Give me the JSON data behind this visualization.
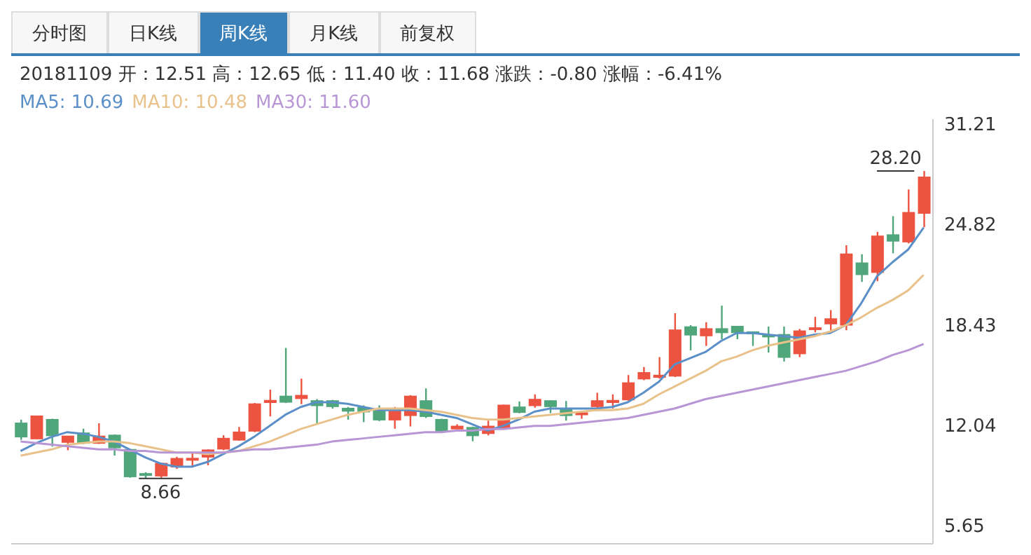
{
  "chart_data": {
    "type": "candlestick",
    "annotations": [
      "分时图",
      "日K线",
      "周K线",
      "月K线",
      "前复权",
      "20181109 开：12.51 高：12.65 低：11.40 收：11.68 涨跌：-0.80 涨幅：-6.41%",
      "8.66",
      "28.20"
    ],
    "categories": [
      null,
      null,
      null,
      null,
      null,
      null,
      null,
      null,
      null,
      null,
      null,
      null,
      null,
      null,
      null,
      null,
      null,
      null,
      null,
      null,
      null,
      null,
      null,
      null,
      null,
      null,
      null,
      null,
      null,
      null,
      null,
      null,
      null,
      null,
      null,
      null,
      null,
      null,
      null,
      null,
      null,
      null,
      null,
      null,
      null,
      null,
      null,
      null,
      null,
      null,
      null,
      null,
      null,
      null,
      null,
      null,
      null,
      null,
      null
    ],
    "ohlc": [
      [
        12.16,
        12.39,
        11.11,
        11.31
      ],
      [
        11.19,
        12.65,
        11.15,
        12.61
      ],
      [
        12.39,
        12.45,
        10.68,
        11.39
      ],
      [
        10.97,
        11.35,
        10.45,
        11.33
      ],
      [
        11.53,
        11.82,
        10.85,
        10.91
      ],
      [
        10.91,
        12.16,
        10.85,
        11.33
      ],
      [
        11.39,
        11.45,
        10.11,
        10.62
      ],
      [
        10.48,
        10.5,
        8.7,
        8.78
      ],
      [
        8.95,
        9.05,
        8.66,
        8.9
      ],
      [
        8.83,
        9.65,
        8.7,
        9.6
      ],
      [
        9.4,
        10.03,
        9.26,
        9.91
      ],
      [
        9.88,
        10.3,
        9.45,
        9.92
      ],
      [
        10.03,
        10.5,
        9.49,
        10.45
      ],
      [
        10.54,
        11.4,
        10.45,
        11.19
      ],
      [
        11.11,
        11.93,
        11.05,
        11.59
      ],
      [
        11.68,
        13.45,
        11.6,
        13.38
      ],
      [
        13.5,
        14.3,
        12.6,
        13.6
      ],
      [
        13.87,
        16.95,
        13.45,
        13.52
      ],
      [
        13.75,
        15.0,
        13.38,
        13.92
      ],
      [
        13.58,
        13.7,
        12.16,
        13.3
      ],
      [
        13.58,
        13.65,
        13.1,
        13.24
      ],
      [
        13.1,
        13.2,
        12.39,
        12.95
      ],
      [
        13.15,
        13.3,
        12.24,
        12.9
      ],
      [
        13.01,
        13.3,
        12.3,
        12.39
      ],
      [
        12.39,
        13.2,
        11.82,
        13.1
      ],
      [
        12.67,
        13.95,
        11.96,
        13.87
      ],
      [
        13.58,
        14.38,
        12.5,
        12.61
      ],
      [
        12.39,
        12.45,
        11.62,
        11.68
      ],
      [
        11.82,
        12.1,
        11.8,
        11.96
      ],
      [
        11.88,
        11.95,
        11.02,
        11.39
      ],
      [
        11.53,
        12.33,
        11.39,
        11.96
      ],
      [
        11.88,
        13.35,
        11.82,
        13.3
      ],
      [
        13.18,
        13.55,
        12.8,
        12.87
      ],
      [
        13.3,
        14.0,
        13.15,
        13.67
      ],
      [
        13.58,
        13.62,
        12.81,
        13.24
      ],
      [
        13.1,
        13.58,
        12.33,
        12.67
      ],
      [
        12.72,
        12.95,
        12.45,
        12.81
      ],
      [
        13.24,
        14.1,
        12.95,
        13.58
      ],
      [
        13.5,
        14.0,
        13.1,
        13.6
      ],
      [
        13.67,
        15.23,
        13.6,
        14.72
      ],
      [
        15.0,
        15.74,
        14.9,
        15.37
      ],
      [
        15.1,
        16.37,
        15.0,
        15.2
      ],
      [
        15.18,
        19.16,
        15.1,
        18.08
      ],
      [
        18.28,
        18.4,
        16.8,
        17.79
      ],
      [
        17.74,
        18.59,
        17.08,
        18.16
      ],
      [
        18.16,
        19.64,
        17.5,
        17.94
      ],
      [
        18.31,
        18.35,
        17.51,
        17.94
      ],
      [
        17.96,
        18.0,
        17.08,
        17.9
      ],
      [
        17.76,
        18.31,
        16.66,
        17.7
      ],
      [
        17.79,
        18.31,
        16.09,
        16.37
      ],
      [
        16.6,
        18.16,
        16.37,
        18.02
      ],
      [
        18.15,
        18.93,
        17.94,
        18.22
      ],
      [
        18.5,
        19.36,
        18.08,
        18.79
      ],
      [
        18.42,
        23.48,
        18.08,
        22.91
      ],
      [
        22.34,
        22.91,
        21.15,
        21.63
      ],
      [
        21.77,
        24.33,
        21.2,
        24.05
      ],
      [
        24.13,
        25.33,
        22.97,
        23.76
      ],
      [
        23.71,
        27.03,
        23.6,
        25.55
      ],
      [
        25.53,
        28.2,
        24.62,
        27.8
      ]
    ],
    "colors": [
      "#4fa67a",
      "#ec5340",
      "#4fa67a",
      "#ec5340",
      "#4fa67a",
      "#ec5340",
      "#4fa67a",
      "#4fa67a",
      "#4fa67a",
      "#ec5340",
      "#ec5340",
      "#ec5340",
      "#ec5340",
      "#ec5340",
      "#ec5340",
      "#ec5340",
      "#ec5340",
      "#4fa67a",
      "#ec5340",
      "#4fa67a",
      "#4fa67a",
      "#4fa67a",
      "#4fa67a",
      "#4fa67a",
      "#ec5340",
      "#ec5340",
      "#4fa67a",
      "#4fa67a",
      "#ec5340",
      "#4fa67a",
      "#ec5340",
      "#ec5340",
      "#4fa67a",
      "#ec5340",
      "#4fa67a",
      "#4fa67a",
      "#ec5340",
      "#ec5340",
      "#ec5340",
      "#ec5340",
      "#ec5340",
      "#ec5340",
      "#ec5340",
      "#4fa67a",
      "#ec5340",
      "#4fa67a",
      "#4fa67a",
      "#4fa67a",
      "#4fa67a",
      "#4fa67a",
      "#ec5340",
      "#ec5340",
      "#ec5340",
      "#ec5340",
      "#4fa67a",
      "#ec5340",
      "#4fa67a",
      "#ec5340",
      "#ec5340"
    ],
    "series": [
      {
        "type": "line",
        "name": "MA5: 10.69",
        "color": "#5b8fc7",
        "values": [
          10.4,
          10.9,
          11.3,
          11.6,
          11.5,
          11.3,
          11.0,
          10.5,
          10.0,
          9.6,
          9.4,
          9.4,
          9.7,
          10.2,
          10.7,
          11.3,
          12.0,
          12.7,
          13.2,
          13.5,
          13.5,
          13.4,
          13.2,
          13.0,
          13.0,
          13.0,
          12.9,
          12.7,
          12.5,
          12.1,
          11.7,
          12.0,
          12.4,
          12.9,
          13.1,
          13.1,
          13.1,
          13.1,
          13.2,
          13.5,
          14.1,
          14.8,
          15.9,
          16.3,
          16.7,
          17.4,
          17.9,
          17.9,
          17.8,
          17.7,
          17.6,
          17.8,
          17.9,
          18.4,
          19.8,
          21.5,
          22.4,
          23.2,
          24.6
        ]
      },
      {
        "type": "line",
        "name": "MA10: 10.48",
        "color": "#e8c28a",
        "values": [
          10.1,
          10.3,
          10.5,
          10.8,
          10.9,
          11.0,
          11.0,
          10.9,
          10.7,
          10.5,
          10.3,
          10.3,
          10.2,
          10.3,
          10.4,
          10.7,
          11.0,
          11.4,
          11.8,
          12.1,
          12.4,
          12.7,
          12.9,
          13.1,
          13.1,
          13.1,
          13.0,
          12.9,
          12.7,
          12.5,
          12.4,
          12.4,
          12.5,
          12.6,
          12.7,
          12.8,
          12.9,
          13.0,
          13.0,
          13.1,
          13.4,
          14.0,
          14.5,
          15.0,
          15.5,
          16.1,
          16.4,
          16.8,
          17.1,
          17.3,
          17.5,
          17.7,
          18.0,
          18.4,
          18.9,
          19.5,
          20.0,
          20.6,
          21.6
        ]
      },
      {
        "type": "line",
        "name": "MA30: 11.60",
        "color": "#b896d6",
        "values": [
          11.0,
          10.9,
          10.8,
          10.7,
          10.6,
          10.5,
          10.5,
          10.4,
          10.4,
          10.3,
          10.3,
          10.3,
          10.3,
          10.3,
          10.4,
          10.5,
          10.5,
          10.6,
          10.7,
          10.8,
          11.0,
          11.1,
          11.2,
          11.3,
          11.4,
          11.5,
          11.6,
          11.6,
          11.7,
          11.7,
          11.8,
          11.8,
          11.9,
          12.0,
          12.0,
          12.1,
          12.2,
          12.3,
          12.4,
          12.5,
          12.7,
          12.9,
          13.1,
          13.4,
          13.7,
          13.9,
          14.1,
          14.3,
          14.5,
          14.7,
          14.9,
          15.1,
          15.3,
          15.5,
          15.8,
          16.1,
          16.5,
          16.8,
          17.2
        ]
      }
    ],
    "ylim": [
      4.5,
      31.5
    ],
    "yticks": [
      5.65,
      12.04,
      18.43,
      24.82,
      31.21
    ],
    "tick_labels": "y",
    "legend": "top left"
  }
}
